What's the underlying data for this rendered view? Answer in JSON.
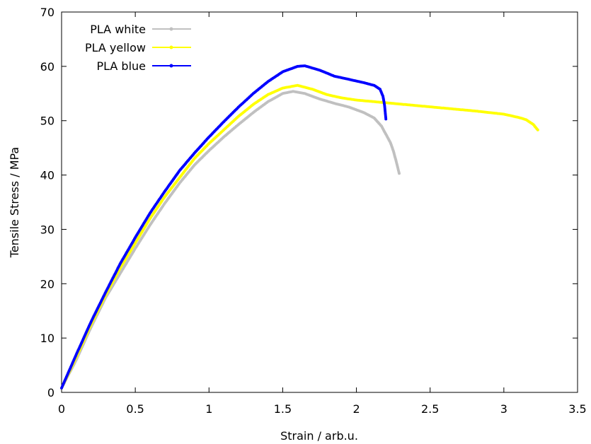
{
  "chart_data": {
    "type": "line",
    "title": "",
    "xlabel": "Strain / arb.u.",
    "ylabel": "Tensile Stress / MPa",
    "xlim": [
      0,
      3.5
    ],
    "ylim": [
      0,
      70
    ],
    "x_ticks": [
      0,
      0.5,
      1,
      1.5,
      2,
      2.5,
      3,
      3.5
    ],
    "x_tick_labels": [
      "0",
      "0.5",
      "1",
      "1.5",
      "2",
      "2.5",
      "3",
      "3.5"
    ],
    "y_ticks": [
      0,
      10,
      20,
      30,
      40,
      50,
      60,
      70
    ],
    "y_tick_labels": [
      "0",
      "10",
      "20",
      "30",
      "40",
      "50",
      "60",
      "70"
    ],
    "grid": false,
    "legend_position": "top-left",
    "series": [
      {
        "name": "PLA white",
        "color": "#c0c0c0",
        "points": [
          [
            0,
            0.8
          ],
          [
            0.1,
            6.0
          ],
          [
            0.2,
            12.0
          ],
          [
            0.3,
            17.5
          ],
          [
            0.4,
            22.0
          ],
          [
            0.5,
            26.5
          ],
          [
            0.6,
            30.8
          ],
          [
            0.7,
            34.8
          ],
          [
            0.8,
            38.5
          ],
          [
            0.9,
            41.8
          ],
          [
            1.0,
            44.5
          ],
          [
            1.1,
            47.0
          ],
          [
            1.2,
            49.3
          ],
          [
            1.3,
            51.5
          ],
          [
            1.4,
            53.5
          ],
          [
            1.5,
            55.0
          ],
          [
            1.57,
            55.4
          ],
          [
            1.65,
            55.0
          ],
          [
            1.75,
            54.0
          ],
          [
            1.85,
            53.2
          ],
          [
            1.95,
            52.5
          ],
          [
            2.05,
            51.5
          ],
          [
            2.12,
            50.5
          ],
          [
            2.17,
            49.0
          ],
          [
            2.2,
            47.5
          ],
          [
            2.23,
            46.0
          ],
          [
            2.25,
            44.5
          ],
          [
            2.27,
            42.5
          ],
          [
            2.29,
            40.3
          ]
        ]
      },
      {
        "name": "PLA yellow",
        "color": "#ffff00",
        "points": [
          [
            0,
            0.8
          ],
          [
            0.1,
            6.5
          ],
          [
            0.2,
            12.5
          ],
          [
            0.3,
            18.0
          ],
          [
            0.4,
            23.0
          ],
          [
            0.5,
            27.5
          ],
          [
            0.6,
            32.0
          ],
          [
            0.7,
            36.0
          ],
          [
            0.8,
            39.5
          ],
          [
            0.9,
            43.0
          ],
          [
            1.0,
            45.8
          ],
          [
            1.1,
            48.3
          ],
          [
            1.2,
            50.8
          ],
          [
            1.3,
            53.0
          ],
          [
            1.4,
            54.8
          ],
          [
            1.5,
            56.0
          ],
          [
            1.6,
            56.5
          ],
          [
            1.7,
            55.8
          ],
          [
            1.8,
            54.8
          ],
          [
            1.9,
            54.2
          ],
          [
            2.0,
            53.8
          ],
          [
            2.2,
            53.3
          ],
          [
            2.4,
            52.8
          ],
          [
            2.6,
            52.3
          ],
          [
            2.8,
            51.8
          ],
          [
            3.0,
            51.2
          ],
          [
            3.1,
            50.6
          ],
          [
            3.15,
            50.2
          ],
          [
            3.2,
            49.3
          ],
          [
            3.23,
            48.3
          ]
        ]
      },
      {
        "name": "PLA blue",
        "color": "#0000ff",
        "points": [
          [
            0,
            0.8
          ],
          [
            0.1,
            7.0
          ],
          [
            0.2,
            13.0
          ],
          [
            0.3,
            18.5
          ],
          [
            0.4,
            23.8
          ],
          [
            0.5,
            28.5
          ],
          [
            0.6,
            33.0
          ],
          [
            0.7,
            37.0
          ],
          [
            0.8,
            40.8
          ],
          [
            0.9,
            44.0
          ],
          [
            1.0,
            47.0
          ],
          [
            1.1,
            49.8
          ],
          [
            1.2,
            52.5
          ],
          [
            1.3,
            55.0
          ],
          [
            1.4,
            57.2
          ],
          [
            1.5,
            59.0
          ],
          [
            1.6,
            60.0
          ],
          [
            1.65,
            60.1
          ],
          [
            1.75,
            59.3
          ],
          [
            1.85,
            58.2
          ],
          [
            1.95,
            57.6
          ],
          [
            2.05,
            57.0
          ],
          [
            2.12,
            56.5
          ],
          [
            2.16,
            55.8
          ],
          [
            2.18,
            54.5
          ],
          [
            2.19,
            53.0
          ],
          [
            2.2,
            50.3
          ]
        ]
      }
    ]
  }
}
